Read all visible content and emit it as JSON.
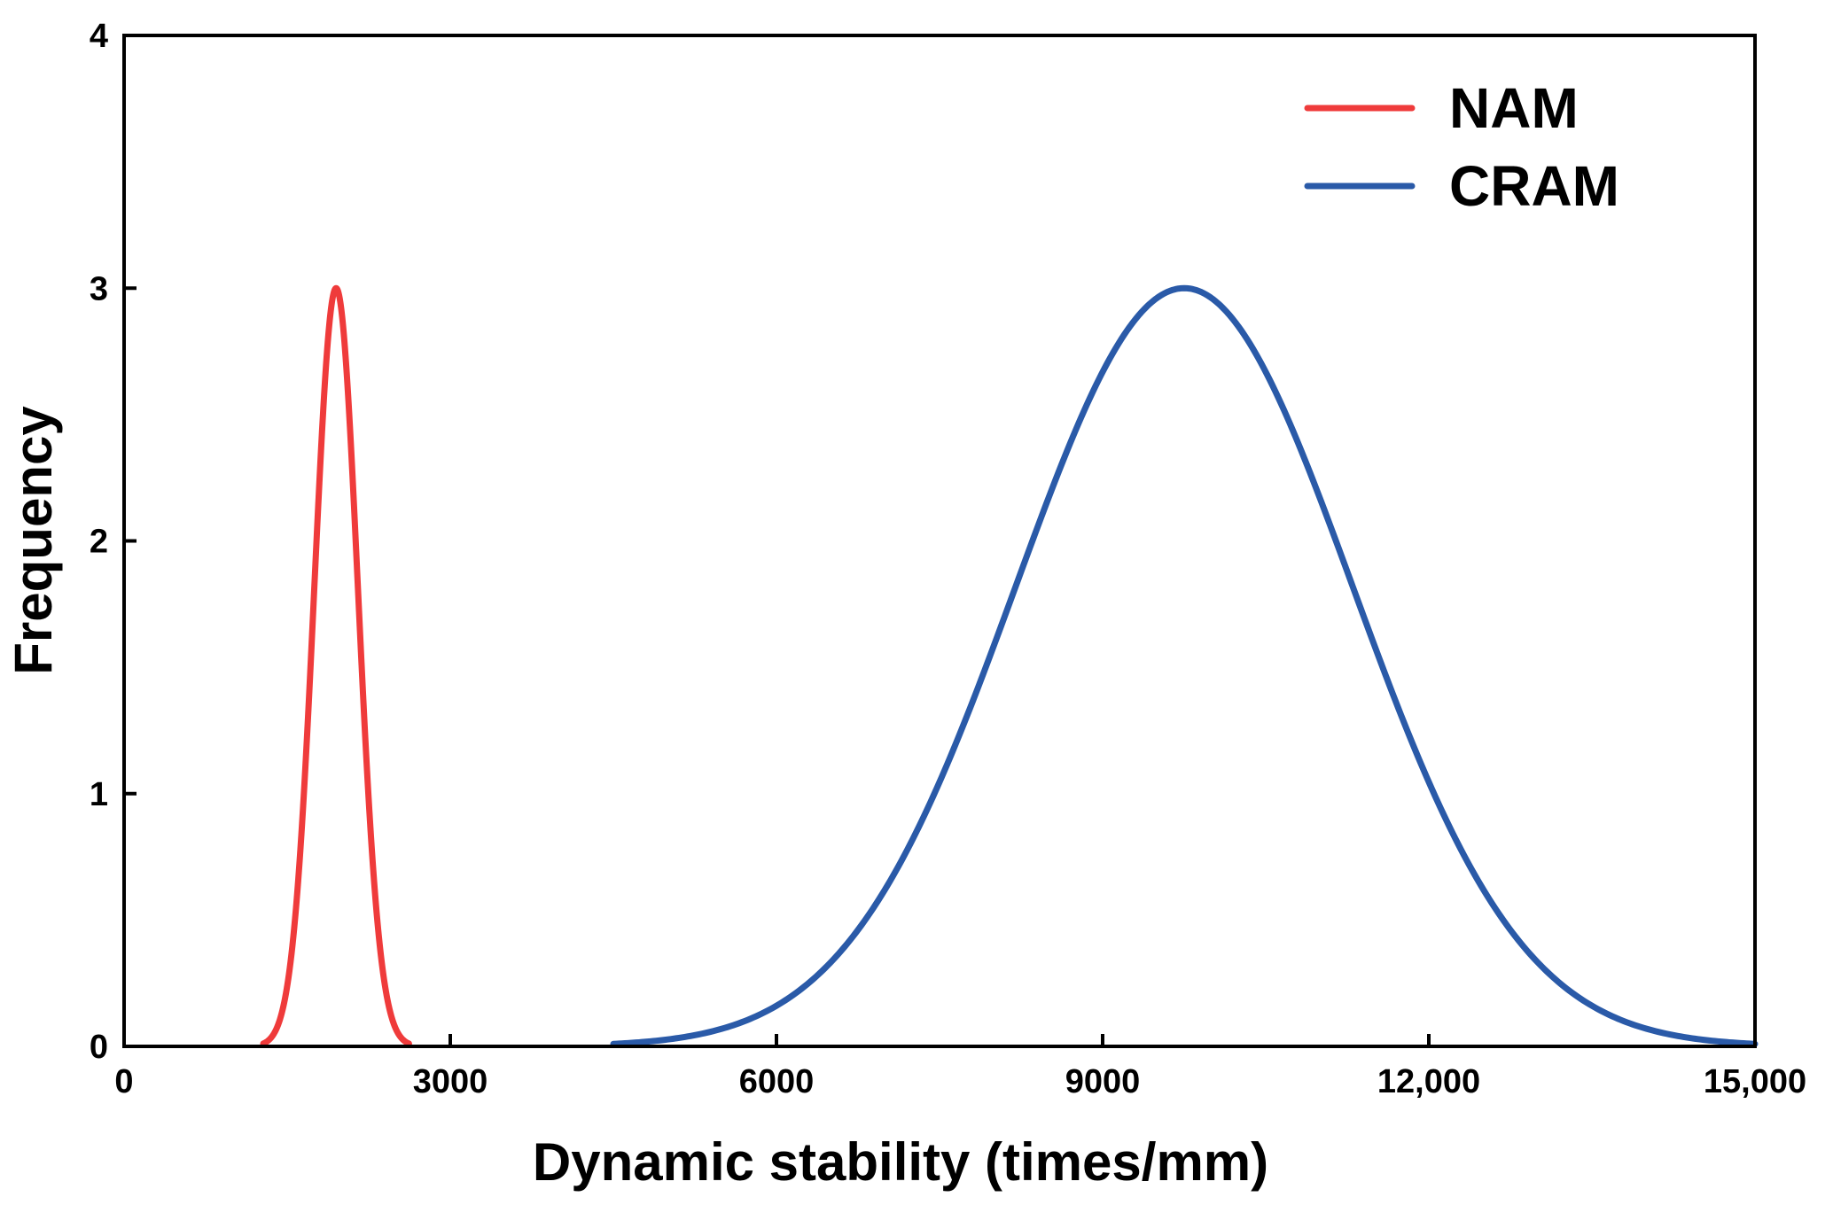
{
  "chart_data": {
    "type": "line",
    "title": "",
    "xlabel": "Dynamic stability (times/mm)",
    "ylabel": "Frequency",
    "xlim": [
      0,
      15000
    ],
    "ylim": [
      0,
      4
    ],
    "grid": false,
    "legend_position": "top-right",
    "x_ticks": [
      {
        "value": 0,
        "label": "0"
      },
      {
        "value": 3000,
        "label": "3000"
      },
      {
        "value": 6000,
        "label": "6000"
      },
      {
        "value": 9000,
        "label": "9000"
      },
      {
        "value": 12000,
        "label": "12,000"
      },
      {
        "value": 15000,
        "label": "15,000"
      }
    ],
    "y_ticks": [
      {
        "value": 0,
        "label": "0"
      },
      {
        "value": 1,
        "label": "1"
      },
      {
        "value": 2,
        "label": "2"
      },
      {
        "value": 3,
        "label": "3"
      },
      {
        "value": 4,
        "label": "4"
      }
    ],
    "series": [
      {
        "name": "NAM",
        "color": "#ef3b3b",
        "distribution": "normal",
        "peak_x": 1950,
        "peak_y": 3,
        "sigma": 200,
        "x_range": [
          1280,
          2620
        ]
      },
      {
        "name": "CRAM",
        "color": "#2a5aa8",
        "distribution": "normal",
        "peak_x": 9750,
        "peak_y": 3,
        "sigma": 1550,
        "x_range": [
          4500,
          15000
        ]
      }
    ]
  }
}
